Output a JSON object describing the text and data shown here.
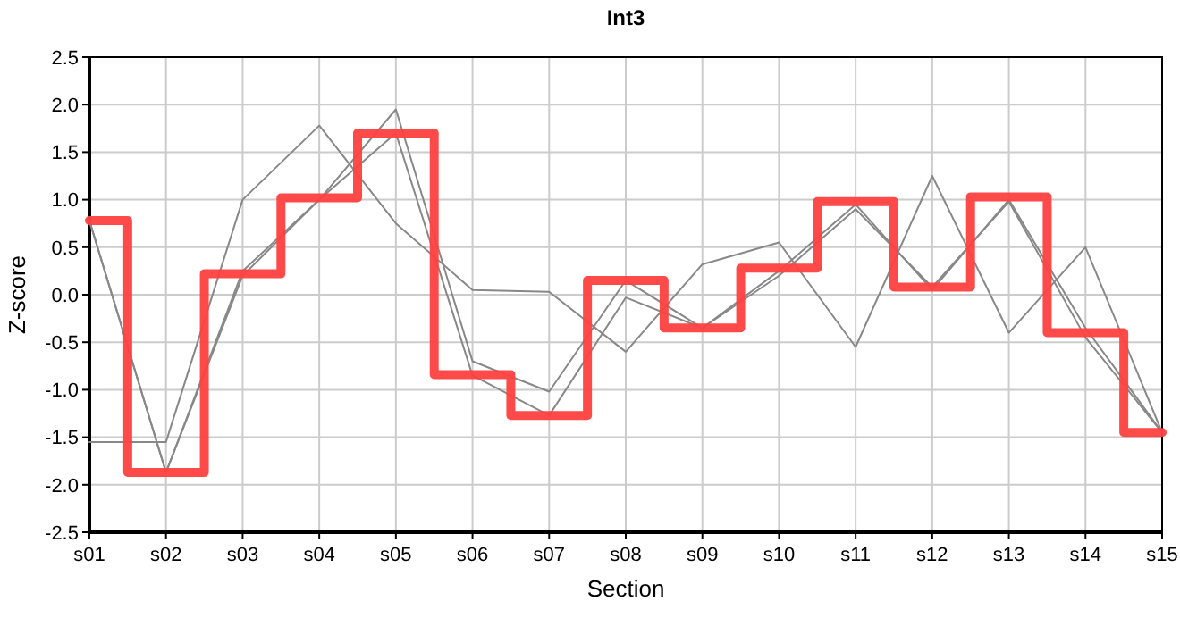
{
  "chart_data": {
    "type": "line",
    "title": "Int3",
    "xlabel": "Section",
    "ylabel": "Z-score",
    "categories": [
      "s01",
      "s02",
      "s03",
      "s04",
      "s05",
      "s06",
      "s07",
      "s08",
      "s09",
      "s10",
      "s11",
      "s12",
      "s13",
      "s14",
      "s15"
    ],
    "ylim": [
      -2.5,
      2.5
    ],
    "yticks": [
      {
        "value": -2.5,
        "label": "-2.5"
      },
      {
        "value": -2,
        "label": "-2.0"
      },
      {
        "value": -1.5,
        "label": "-1.5"
      },
      {
        "value": -1,
        "label": "-1.0"
      },
      {
        "value": -0.5,
        "label": "-0.5"
      },
      {
        "value": 0,
        "label": "0.0"
      },
      {
        "value": 0.5,
        "label": "0.5"
      },
      {
        "value": 1,
        "label": "1.0"
      },
      {
        "value": 1.5,
        "label": "1.5"
      },
      {
        "value": 2,
        "label": "2.0"
      },
      {
        "value": 2.5,
        "label": "2.5"
      }
    ],
    "grid": true,
    "marker": "none",
    "series": [
      {
        "color": "#888888",
        "values": [
          -1.55,
          -1.55,
          1.0,
          1.78,
          0.75,
          0.05,
          0.03,
          -0.6,
          0.32,
          0.55,
          -0.55,
          1.25,
          -0.4,
          0.5,
          -1.45
        ]
      },
      {
        "color": "#888888",
        "values": [
          0.78,
          -1.87,
          0.2,
          1.0,
          1.95,
          -0.7,
          -1.02,
          0.15,
          -0.35,
          0.25,
          0.95,
          0.05,
          1.0,
          -0.35,
          -1.45
        ]
      },
      {
        "color": "#888888",
        "values": [
          0.78,
          -1.87,
          0.25,
          1.0,
          1.7,
          -0.85,
          -1.27,
          -0.03,
          -0.35,
          0.2,
          0.9,
          0.08,
          0.98,
          -0.45,
          -1.45
        ]
      },
      {
        "type": "step",
        "color": "#ff4040",
        "values": [
          0.78,
          -1.87,
          0.22,
          1.02,
          1.7,
          -0.84,
          -1.27,
          0.15,
          -0.35,
          0.28,
          0.98,
          0.08,
          1.03,
          -0.4,
          -1.45
        ]
      }
    ]
  }
}
